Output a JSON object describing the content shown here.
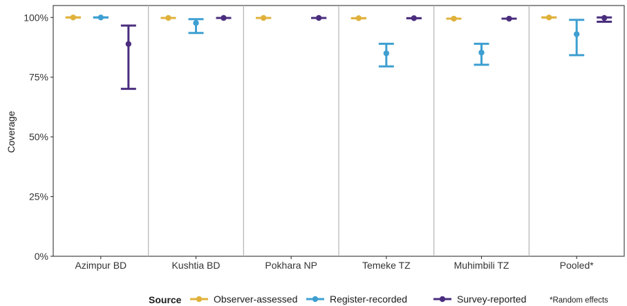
{
  "chart_data": {
    "type": "scatter",
    "subtype": "point-range (dot with error bars), grouped by site",
    "ylabel": "Coverage",
    "ylim": [
      0,
      1.05
    ],
    "y_ticks": [
      0,
      0.25,
      0.5,
      0.75,
      1.0
    ],
    "y_tick_labels": [
      "0%",
      "25%",
      "50%",
      "75%",
      "100%"
    ],
    "categories": [
      "Azimpur BD",
      "Kushtia BD",
      "Pokhara NP",
      "Temeke TZ",
      "Muhimbili TZ",
      "Pooled*"
    ],
    "panel_dividers": true,
    "grid": false,
    "legend": {
      "title": "Source",
      "position": "bottom",
      "note": "*Random effects"
    },
    "series": [
      {
        "name": "Observer-assessed",
        "color": "#E0B13A",
        "points": [
          {
            "category": "Azimpur BD",
            "value": 1.0,
            "lower": 1.0,
            "upper": 1.0
          },
          {
            "category": "Kushtia BD",
            "value": 0.998,
            "lower": 0.998,
            "upper": 0.998
          },
          {
            "category": "Pokhara NP",
            "value": 0.998,
            "lower": 0.998,
            "upper": 0.998
          },
          {
            "category": "Temeke TZ",
            "value": 0.997,
            "lower": 0.997,
            "upper": 0.997
          },
          {
            "category": "Muhimbili TZ",
            "value": 0.995,
            "lower": 0.995,
            "upper": 0.995
          },
          {
            "category": "Pooled*",
            "value": 1.0,
            "lower": 1.0,
            "upper": 1.0
          }
        ]
      },
      {
        "name": "Register-recorded",
        "color": "#3E9FD1",
        "points": [
          {
            "category": "Azimpur BD",
            "value": 1.0,
            "lower": 1.0,
            "upper": 1.0
          },
          {
            "category": "Kushtia BD",
            "value": 0.977,
            "lower": 0.935,
            "upper": 0.993
          },
          {
            "category": "Temeke TZ",
            "value": 0.85,
            "lower": 0.795,
            "upper": 0.89
          },
          {
            "category": "Muhimbili TZ",
            "value": 0.853,
            "lower": 0.802,
            "upper": 0.89
          },
          {
            "category": "Pooled*",
            "value": 0.93,
            "lower": 0.842,
            "upper": 0.99
          }
        ]
      },
      {
        "name": "Survey-reported",
        "color": "#4A2D7E",
        "points": [
          {
            "category": "Azimpur BD",
            "value": 0.889,
            "lower": 0.701,
            "upper": 0.966
          },
          {
            "category": "Kushtia BD",
            "value": 0.998,
            "lower": 0.998,
            "upper": 0.998
          },
          {
            "category": "Pokhara NP",
            "value": 0.998,
            "lower": 0.998,
            "upper": 0.998
          },
          {
            "category": "Temeke TZ",
            "value": 0.997,
            "lower": 0.997,
            "upper": 0.997
          },
          {
            "category": "Muhimbili TZ",
            "value": 0.995,
            "lower": 0.995,
            "upper": 0.995
          },
          {
            "category": "Pooled*",
            "value": 0.998,
            "lower": 0.982,
            "upper": 1.0
          }
        ]
      }
    ]
  }
}
